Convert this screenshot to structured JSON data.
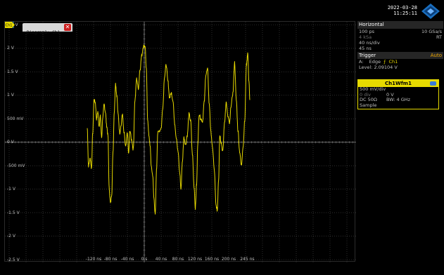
{
  "header": {
    "date": "2022-03-28",
    "time": "11:25:11",
    "logo": "rohde-schwarz-diamond-icon"
  },
  "diagram": {
    "tab_label": "Diagram1: Ch1",
    "close_symbol": "✕",
    "y_labels": [
      "2.5 V",
      "2 V",
      "1.5 V",
      "1 V",
      "500 mV",
      "0 V",
      "-500 mV",
      "-1 V",
      "-1.5 V",
      "-2 V",
      "-2.5 V"
    ],
    "x_labels": [
      "-120 ns",
      "-80 ns",
      "-40 ns",
      "0 s",
      "40 ns",
      "80 ns",
      "120 ns",
      "160 ns",
      "200 ns",
      "245 ns"
    ],
    "trigger_level_marker": "TA",
    "ground_marker": "Ch1",
    "waveform_color": "#e6d800",
    "grid_color": "#4a4a4a"
  },
  "horizontal": {
    "title": "Horizontal",
    "resolution": "100 ps",
    "sample_rate": "10 GSa/s",
    "record_length": "4 kSa",
    "mode": "RT",
    "timebase": "40 ns/div",
    "position": "45 ns"
  },
  "trigger": {
    "title": "Trigger",
    "mode": "Auto",
    "source_prefix": "A:",
    "type": "Edge",
    "slope_symbol": "⨍",
    "channel": "Ch1",
    "level_label": "Level:",
    "level_value": "2.09104 V"
  },
  "waveform_box": {
    "title": "Ch1Wfm1",
    "scale": "500 mV/div",
    "position": "0 div",
    "offset": "0 V",
    "coupling": "DC 50Ω",
    "bandwidth": "BW: 4 GHz",
    "acquisition": "Sample",
    "accent_color": "#e6da00"
  }
}
